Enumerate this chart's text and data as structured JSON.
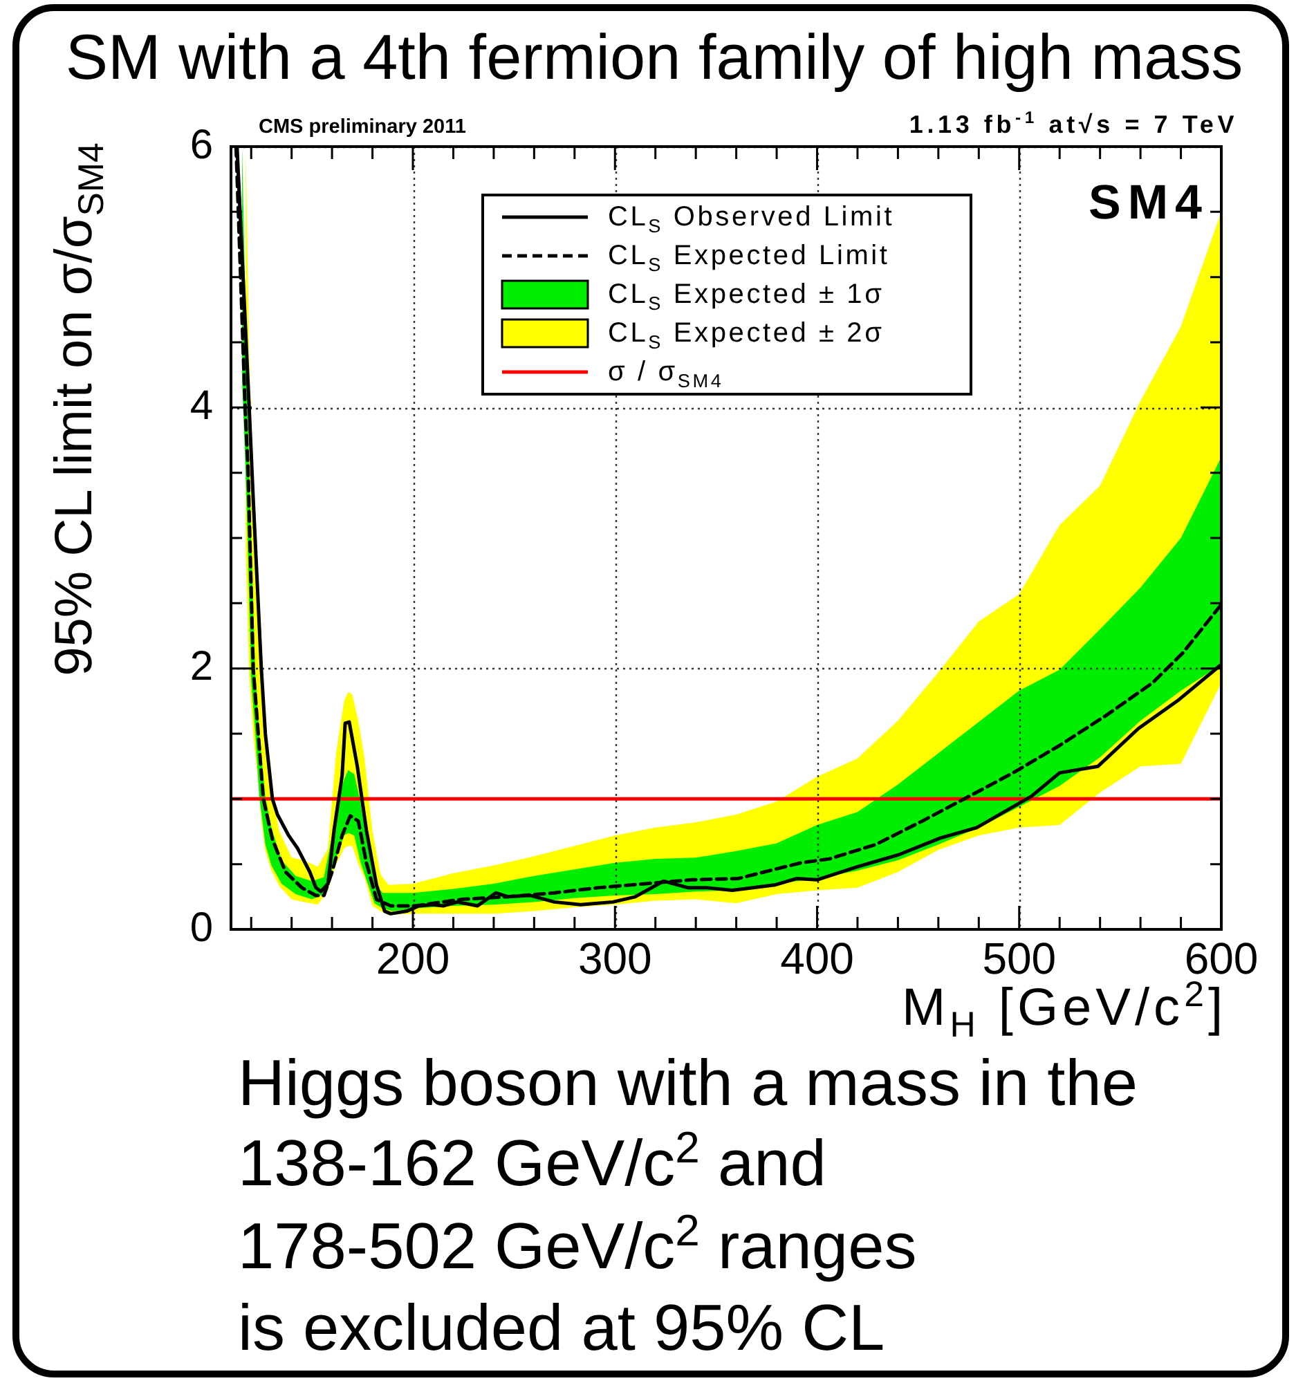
{
  "chart_data": {
    "type": "line",
    "title": "SM with a 4th fermion family of high mass",
    "xlabel": "M$_{H}$ [GeV/c$^{2}$]",
    "ylabel": "95% CL limit on σ/σ$_{SM4}$",
    "annotations": [
      "CMS preliminary 2011",
      "1.13 fb$^{-1}$ at√s = 7 TeV",
      "SM4",
      "Higgs boson with a mass in the",
      "138-162 GeV/c$^{2}$ and",
      "178-502 GeV/c$^{2}$ ranges",
      "is excluded at 95% CL"
    ],
    "xlim": [
      110,
      600
    ],
    "xticks": [
      {
        "value": 120,
        "label": null
      },
      {
        "value": 140,
        "label": null
      },
      {
        "value": 160,
        "label": null
      },
      {
        "value": 180,
        "label": null
      },
      200,
      {
        "value": 220,
        "label": null
      },
      {
        "value": 240,
        "label": null
      },
      {
        "value": 260,
        "label": null
      },
      {
        "value": 280,
        "label": null
      },
      300,
      {
        "value": 320,
        "label": null
      },
      {
        "value": 340,
        "label": null
      },
      {
        "value": 360,
        "label": null
      },
      {
        "value": 380,
        "label": null
      },
      400,
      {
        "value": 420,
        "label": null
      },
      {
        "value": 440,
        "label": null
      },
      {
        "value": 460,
        "label": null
      },
      {
        "value": 480,
        "label": null
      },
      500,
      {
        "value": 520,
        "label": null
      },
      {
        "value": 540,
        "label": null
      },
      {
        "value": 560,
        "label": null
      },
      {
        "value": 580,
        "label": null
      },
      600
    ],
    "ylim": [
      0,
      6
    ],
    "yticks": [
      0,
      {
        "value": 0.5,
        "label": null
      },
      {
        "value": 1,
        "label": null
      },
      {
        "value": 1.5,
        "label": null
      },
      2,
      {
        "value": 2.5,
        "label": null
      },
      {
        "value": 3,
        "label": null
      },
      {
        "value": 3.5,
        "label": null
      },
      4,
      {
        "value": 4.5,
        "label": null
      },
      {
        "value": 5,
        "label": null
      },
      {
        "value": 5.5,
        "label": null
      },
      6
    ],
    "grid": true,
    "legend": "top",
    "marker": "none",
    "series": [
      {
        "name": "CL$_{S}$ Observed Limit",
        "type": "line",
        "line_style": "solid",
        "color": "#000000",
        "x": [
          113,
          119,
          121,
          125,
          127,
          130.5,
          133,
          138.5,
          143,
          149,
          152,
          154.5,
          158,
          161,
          165,
          166.5,
          168.5,
          172.5,
          177,
          182,
          186,
          189,
          197,
          203,
          210,
          215,
          222,
          232,
          241,
          247,
          258,
          270,
          283,
          299,
          310,
          324,
          336,
          345,
          358,
          379,
          390,
          400,
          420,
          440,
          461,
          479,
          497,
          506,
          520,
          539,
          559,
          579,
          600
        ],
        "values": [
          6.0,
          4.0,
          3.3,
          2.0,
          1.5,
          1.0,
          0.88,
          0.72,
          0.62,
          0.44,
          0.32,
          0.29,
          0.35,
          0.76,
          1.18,
          1.58,
          1.59,
          1.25,
          0.76,
          0.34,
          0.14,
          0.12,
          0.14,
          0.18,
          0.19,
          0.18,
          0.21,
          0.18,
          0.28,
          0.25,
          0.26,
          0.21,
          0.19,
          0.21,
          0.25,
          0.37,
          0.32,
          0.32,
          0.3,
          0.34,
          0.39,
          0.38,
          0.48,
          0.57,
          0.7,
          0.78,
          0.94,
          1.02,
          1.2,
          1.25,
          1.54,
          1.76,
          2.03
        ]
      },
      {
        "name": "CL$_{S}$ Expected Limit",
        "type": "line",
        "line_style": "dashed",
        "color": "#000000",
        "x": [
          112.5,
          117,
          118.5,
          121,
          126,
          130.5,
          137,
          145,
          152,
          156,
          160,
          165,
          169,
          173,
          177,
          182,
          189,
          201,
          224,
          247,
          270,
          292,
          315,
          338,
          361,
          379,
          392,
          406,
          429,
          452,
          474,
          497,
          520,
          543,
          566,
          581,
          600
        ],
        "values": [
          6.0,
          4.0,
          3.5,
          2.0,
          1.0,
          0.69,
          0.44,
          0.32,
          0.26,
          0.26,
          0.44,
          0.72,
          0.87,
          0.83,
          0.51,
          0.23,
          0.18,
          0.18,
          0.23,
          0.25,
          0.28,
          0.32,
          0.35,
          0.38,
          0.39,
          0.46,
          0.51,
          0.54,
          0.65,
          0.83,
          1.01,
          1.2,
          1.41,
          1.64,
          1.89,
          2.12,
          2.49
        ]
      },
      {
        "name": "CL$_{S}$ Expected ± 1σ",
        "type": "line",
        "color": "#00ee00",
        "x": [
          115.5,
          117,
          118,
          120,
          122,
          124,
          127,
          130,
          135,
          142,
          150,
          156,
          160,
          163,
          166,
          168,
          171,
          174,
          177,
          181,
          185,
          190,
          200,
          220,
          240,
          260,
          280,
          300,
          320,
          340,
          360,
          380,
          400,
          420,
          440,
          460,
          480,
          500,
          520,
          540,
          560,
          580,
          600
        ],
        "values": [
          null,
          null,
          null,
          null,
          null,
          null,
          null,
          null,
          null,
          null,
          null,
          null,
          null,
          null,
          null,
          null,
          null,
          null,
          null,
          null,
          null,
          null,
          null,
          null,
          null,
          null,
          null,
          null,
          null,
          null,
          null,
          null,
          null,
          null,
          null,
          null,
          null,
          null,
          null,
          null,
          null,
          null,
          null
        ],
        "lower": [
          4.2,
          3.6,
          3.1,
          1.9,
          1.5,
          1.02,
          0.65,
          0.49,
          0.35,
          0.27,
          0.23,
          0.27,
          0.45,
          0.59,
          0.72,
          0.74,
          0.72,
          0.52,
          0.38,
          0.2,
          0.16,
          0.14,
          0.16,
          0.18,
          0.19,
          0.21,
          0.24,
          0.26,
          0.27,
          0.29,
          0.3,
          0.35,
          0.39,
          0.45,
          0.53,
          0.65,
          0.78,
          0.94,
          1.1,
          1.32,
          1.6,
          1.83,
          2.03
        ],
        "upper": [
          6.0,
          4.9,
          4.1,
          3.0,
          1.98,
          1.5,
          1.02,
          0.78,
          0.53,
          0.41,
          0.37,
          0.4,
          0.72,
          1.0,
          1.15,
          1.22,
          1.19,
          0.98,
          0.7,
          0.36,
          0.28,
          0.28,
          0.28,
          0.31,
          0.35,
          0.41,
          0.46,
          0.51,
          0.54,
          0.55,
          0.6,
          0.66,
          0.8,
          0.9,
          1.11,
          1.35,
          1.59,
          1.83,
          1.99,
          2.3,
          2.62,
          3.0,
          3.62
        ]
      },
      {
        "name": "CL$_{S}$ Expected ± 2σ",
        "type": "line",
        "color": "#ffff00",
        "x": [
          117.3,
          119,
          121,
          123,
          125,
          127,
          130,
          134,
          140,
          146,
          153,
          158,
          162,
          166,
          168,
          170,
          173,
          176,
          180,
          184,
          188,
          200,
          220,
          240,
          260,
          280,
          300,
          320,
          340,
          360,
          380,
          400,
          420,
          440,
          460,
          480,
          500,
          520,
          540,
          560,
          580,
          600
        ],
        "values": [
          null,
          null,
          null,
          null,
          null,
          null,
          null,
          null,
          null,
          null,
          null,
          null,
          null,
          null,
          null,
          null,
          null,
          null,
          null,
          null,
          null,
          null,
          null,
          null,
          null,
          null,
          null,
          null,
          null,
          null,
          null,
          null,
          null,
          null,
          null,
          null,
          null,
          null,
          null,
          null,
          null,
          null
        ],
        "lower": [
          2.9,
          1.95,
          1.5,
          1.2,
          0.85,
          0.6,
          0.45,
          0.33,
          0.23,
          0.21,
          0.19,
          0.3,
          0.5,
          0.62,
          0.64,
          0.64,
          0.5,
          0.4,
          0.18,
          0.14,
          0.11,
          0.12,
          0.12,
          0.12,
          0.14,
          0.17,
          0.19,
          0.22,
          0.23,
          0.2,
          0.27,
          0.3,
          0.32,
          0.44,
          0.61,
          0.72,
          0.78,
          0.8,
          1.05,
          1.25,
          1.27,
          1.89
        ],
        "upper": [
          6.0,
          4.4,
          3.5,
          2.6,
          1.9,
          1.45,
          1.05,
          0.75,
          0.55,
          0.53,
          0.48,
          0.62,
          1.35,
          1.75,
          1.82,
          1.8,
          1.6,
          1.32,
          0.75,
          0.42,
          0.34,
          0.35,
          0.43,
          0.49,
          0.56,
          0.64,
          0.72,
          0.78,
          0.82,
          0.88,
          0.98,
          1.17,
          1.31,
          1.6,
          1.97,
          2.36,
          2.57,
          3.1,
          3.4,
          4.05,
          4.62,
          5.5
        ]
      },
      {
        "name": "σ / σ$_{SM4}$",
        "type": "line",
        "line_style": "solid",
        "color": "#ff0000",
        "x": [
          110,
          600
        ],
        "values": [
          1,
          1
        ]
      }
    ]
  }
}
